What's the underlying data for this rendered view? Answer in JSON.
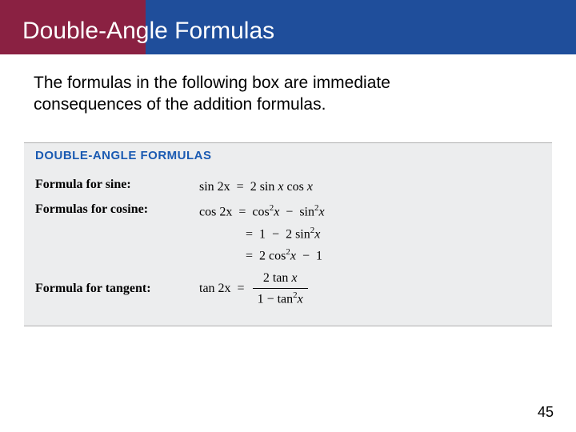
{
  "colors": {
    "maroon": "#8a2142",
    "blue": "#1f4e9b",
    "box_header_text": "#1a5ab2",
    "box_body_bg": "#ecedee",
    "white": "#ffffff",
    "black": "#000000"
  },
  "title": "Double-Angle Formulas",
  "intro": "The formulas in the following box are immediate consequences of the addition formulas.",
  "box": {
    "header": "DOUBLE-ANGLE FORMULAS",
    "rows": {
      "sine": {
        "label": "Formula for sine:",
        "lhs_fn": "sin",
        "lhs_arg": "2x",
        "rhs_coef": "2",
        "rhs_fn1": "sin",
        "rhs_arg1": "x",
        "rhs_fn2": "cos",
        "rhs_arg2": "x"
      },
      "cosine": {
        "label": "Formulas for cosine:",
        "lhs_fn": "cos",
        "lhs_arg": "2x",
        "line1": {
          "fn1": "cos",
          "exp1": "2",
          "arg1": "x",
          "op": "−",
          "fn2": "sin",
          "exp2": "2",
          "arg2": "x"
        },
        "line2": {
          "c1": "1",
          "op": "−",
          "coef": "2",
          "fn": "sin",
          "exp": "2",
          "arg": "x"
        },
        "line3": {
          "coef": "2",
          "fn": "cos",
          "exp": "2",
          "arg": "x",
          "op": "−",
          "c2": "1"
        }
      },
      "tangent": {
        "label": "Formula for tangent:",
        "lhs_fn": "tan",
        "lhs_arg": "2x",
        "num": {
          "coef": "2",
          "fn": "tan",
          "arg": "x"
        },
        "den": {
          "c1": "1",
          "op": "−",
          "fn": "tan",
          "exp": "2",
          "arg": "x"
        }
      }
    }
  },
  "page_number": "45"
}
